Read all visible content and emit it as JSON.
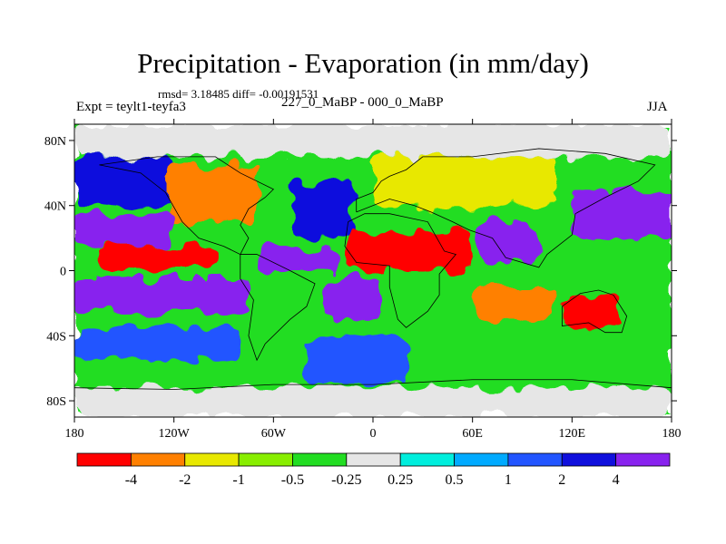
{
  "header": {
    "title": "Precipitation - Evaporation (in mm/day)",
    "stats": "rmsd= 3.18485 diff= -0.00191531",
    "experiment": "Expt = teylt1-teyfa3",
    "subtitle": "227_0_MaBP - 000_0_MaBP",
    "season": "JJA"
  },
  "chart_data": {
    "type": "heatmap",
    "title": "Precipitation - Evaporation (in mm/day)",
    "x_axis": {
      "range": [
        -180,
        180
      ],
      "ticks": [
        {
          "value": -180,
          "label": "180"
        },
        {
          "value": -120,
          "label": "120W"
        },
        {
          "value": -60,
          "label": "60W"
        },
        {
          "value": 0,
          "label": "0"
        },
        {
          "value": 60,
          "label": "60E"
        },
        {
          "value": 120,
          "label": "120E"
        },
        {
          "value": 180,
          "label": "180"
        }
      ]
    },
    "y_axis": {
      "range": [
        -90,
        90
      ],
      "ticks": [
        {
          "value": 80,
          "label": "80N"
        },
        {
          "value": 40,
          "label": "40N"
        },
        {
          "value": 0,
          "label": "0"
        },
        {
          "value": -40,
          "label": "40S"
        },
        {
          "value": -80,
          "label": "80S"
        }
      ]
    },
    "colorbar": {
      "colors": [
        "#ff0000",
        "#ff8000",
        "#e8e800",
        "#88ee00",
        "#22dd22",
        "#e6e6e6",
        "#00eedd",
        "#00aaff",
        "#2255ff",
        "#1010dd",
        "#8822ee"
      ],
      "labels": [
        "-4",
        "-2",
        "-1",
        "-0.5",
        "-0.25",
        "0.25",
        "0.5",
        "1",
        "2",
        "4"
      ]
    },
    "regions": [
      {
        "name": "background",
        "lon": [
          -180,
          180
        ],
        "lat": [
          -90,
          90
        ],
        "color": "#22dd22"
      },
      {
        "name": "arctic",
        "lon": [
          -180,
          180
        ],
        "lat": [
          70,
          90
        ],
        "color": "#e6e6e6"
      },
      {
        "name": "antarctic",
        "lon": [
          -180,
          180
        ],
        "lat": [
          -90,
          -72
        ],
        "color": "#e6e6e6"
      },
      {
        "name": "north-pacific",
        "lon": [
          -180,
          -120
        ],
        "lat": [
          40,
          70
        ],
        "color": "#1010dd"
      },
      {
        "name": "north-america",
        "lon": [
          -125,
          -70
        ],
        "lat": [
          30,
          65
        ],
        "color": "#ff8000"
      },
      {
        "name": "north-atlantic",
        "lon": [
          -50,
          -10
        ],
        "lat": [
          20,
          55
        ],
        "color": "#1010dd"
      },
      {
        "name": "eurasia",
        "lon": [
          0,
          110
        ],
        "lat": [
          40,
          70
        ],
        "color": "#e8e800"
      },
      {
        "name": "west-pacific-north",
        "lon": [
          120,
          180
        ],
        "lat": [
          20,
          50
        ],
        "color": "#8822ee"
      },
      {
        "name": "pacific-north-band",
        "lon": [
          -180,
          -120
        ],
        "lat": [
          15,
          35
        ],
        "color": "#8822ee"
      },
      {
        "name": "pacific-dry-band",
        "lon": [
          -165,
          -95
        ],
        "lat": [
          0,
          15
        ],
        "color": "#ff0000"
      },
      {
        "name": "atlantic-wet",
        "lon": [
          -70,
          -20
        ],
        "lat": [
          0,
          15
        ],
        "color": "#8822ee"
      },
      {
        "name": "africa-arabia",
        "lon": [
          -15,
          60
        ],
        "lat": [
          0,
          25
        ],
        "color": "#ff0000"
      },
      {
        "name": "india",
        "lon": [
          65,
          100
        ],
        "lat": [
          5,
          30
        ],
        "color": "#8822ee"
      },
      {
        "name": "south-atlantic",
        "lon": [
          -30,
          5
        ],
        "lat": [
          -30,
          -5
        ],
        "color": "#8822ee"
      },
      {
        "name": "east-pacific-south",
        "lon": [
          -180,
          -75
        ],
        "lat": [
          -25,
          -5
        ],
        "color": "#8822ee"
      },
      {
        "name": "south-indian",
        "lon": [
          60,
          110
        ],
        "lat": [
          -30,
          -10
        ],
        "color": "#ff8000"
      },
      {
        "name": "australia",
        "lon": [
          115,
          150
        ],
        "lat": [
          -35,
          -15
        ],
        "color": "#ff0000"
      },
      {
        "name": "southern-ocean-pacific",
        "lon": [
          -180,
          -80
        ],
        "lat": [
          -55,
          -35
        ],
        "color": "#2255ff"
      },
      {
        "name": "southern-ocean-atlantic",
        "lon": [
          -40,
          20
        ],
        "lat": [
          -70,
          -40
        ],
        "color": "#2255ff"
      }
    ]
  }
}
